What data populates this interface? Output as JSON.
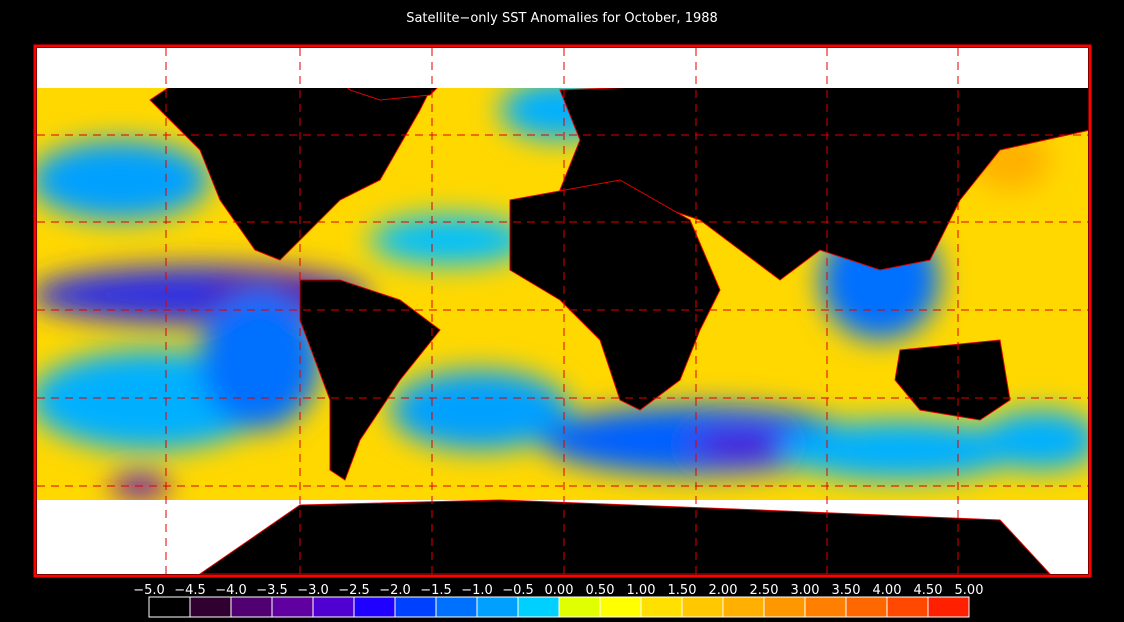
{
  "title": "Satellite−only SST Anomalies for October, 1988",
  "colorbar": {
    "labels": [
      "−5.0",
      "−4.5",
      "−4.0",
      "−3.5",
      "−3.0",
      "−2.5",
      "−2.0",
      "−1.5",
      "−1.0",
      "−0.5",
      "0.00",
      "0.50",
      "1.00",
      "1.50",
      "2.00",
      "2.50",
      "3.00",
      "3.50",
      "4.00",
      "4.50",
      "5.00"
    ],
    "colors": [
      "#000000",
      "#300030",
      "#500070",
      "#6000a0",
      "#5000d0",
      "#2000ff",
      "#0040ff",
      "#0070ff",
      "#00a0ff",
      "#00d0ff",
      "#e0ff00",
      "#ffff00",
      "#ffe000",
      "#ffc800",
      "#ffb000",
      "#ff9800",
      "#ff8000",
      "#ff6800",
      "#ff4800",
      "#ff2000"
    ]
  }
}
